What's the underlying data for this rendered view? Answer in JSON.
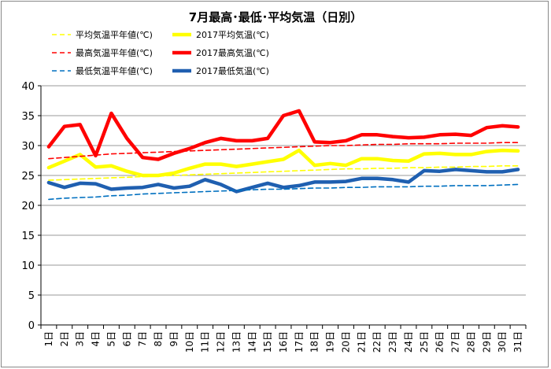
{
  "chart_data": {
    "type": "line",
    "title": "7月最高･最低･平均気温（日別）",
    "xlabel": "",
    "ylabel": "",
    "ylim": [
      0,
      40
    ],
    "yticks": [
      0,
      5,
      10,
      15,
      20,
      25,
      30,
      35,
      40
    ],
    "grid": true,
    "legend_position": "top",
    "categories": [
      "1日",
      "2日",
      "3日",
      "4日",
      "5日",
      "6日",
      "7日",
      "8日",
      "9日",
      "10日",
      "11日",
      "12日",
      "13日",
      "14日",
      "15日",
      "16日",
      "17日",
      "18日",
      "19日",
      "20日",
      "21日",
      "22日",
      "23日",
      "24日",
      "25日",
      "26日",
      "27日",
      "28日",
      "29日",
      "30日",
      "31日"
    ],
    "series": [
      {
        "name": "平均気温平年値(℃)",
        "color": "#ffff00",
        "style": "dashed",
        "values": [
          24.2,
          24.3,
          24.4,
          24.5,
          24.6,
          24.7,
          24.8,
          24.9,
          25.0,
          25.1,
          25.2,
          25.3,
          25.4,
          25.5,
          25.6,
          25.7,
          25.8,
          25.9,
          26.0,
          26.1,
          26.1,
          26.2,
          26.2,
          26.3,
          26.3,
          26.4,
          26.4,
          26.5,
          26.5,
          26.6,
          26.6
        ]
      },
      {
        "name": "2017平均気温(℃)",
        "color": "#ffff00",
        "style": "solid",
        "values": [
          26.3,
          27.4,
          28.5,
          26.4,
          26.6,
          25.7,
          25.0,
          25.0,
          25.4,
          26.2,
          26.9,
          26.9,
          26.5,
          26.9,
          27.3,
          27.7,
          29.2,
          26.7,
          27.0,
          26.7,
          27.8,
          27.8,
          27.5,
          27.4,
          28.6,
          28.7,
          28.5,
          28.5,
          29.0,
          29.2,
          29.1
        ]
      },
      {
        "name": "最高気温平年値(℃)",
        "color": "#ff0000",
        "style": "dashed",
        "values": [
          27.8,
          28.0,
          28.2,
          28.4,
          28.6,
          28.7,
          28.8,
          28.9,
          29.0,
          29.1,
          29.2,
          29.3,
          29.4,
          29.5,
          29.6,
          29.7,
          29.8,
          29.9,
          30.0,
          30.0,
          30.1,
          30.2,
          30.2,
          30.3,
          30.3,
          30.3,
          30.4,
          30.4,
          30.4,
          30.5,
          30.5
        ]
      },
      {
        "name": "2017最高気温(℃)",
        "color": "#ff0000",
        "style": "solid",
        "values": [
          29.8,
          33.2,
          33.5,
          28.3,
          35.4,
          31.2,
          28.0,
          27.7,
          28.7,
          29.5,
          30.5,
          31.2,
          30.8,
          30.8,
          31.2,
          35.0,
          35.8,
          30.6,
          30.5,
          30.8,
          31.8,
          31.8,
          31.5,
          31.3,
          31.4,
          31.8,
          31.9,
          31.7,
          33.0,
          33.3,
          33.1
        ]
      },
      {
        "name": "最低気温平年値(℃)",
        "color": "#0070c0",
        "style": "dashed",
        "values": [
          21.0,
          21.2,
          21.3,
          21.4,
          21.6,
          21.7,
          21.9,
          22.0,
          22.1,
          22.2,
          22.3,
          22.4,
          22.5,
          22.6,
          22.7,
          22.7,
          22.8,
          22.9,
          22.9,
          23.0,
          23.0,
          23.1,
          23.1,
          23.1,
          23.2,
          23.2,
          23.3,
          23.3,
          23.3,
          23.4,
          23.5
        ]
      },
      {
        "name": "2017最低気温(℃)",
        "color": "#1f5fb0",
        "style": "solid",
        "values": [
          23.8,
          23.0,
          23.7,
          23.6,
          22.7,
          22.9,
          23.0,
          23.5,
          22.9,
          23.2,
          24.3,
          23.5,
          22.3,
          23.0,
          23.7,
          23.0,
          23.3,
          23.9,
          23.9,
          24.0,
          24.5,
          24.5,
          24.3,
          23.9,
          25.8,
          25.7,
          26.0,
          25.8,
          25.6,
          25.6,
          26.0
        ]
      }
    ]
  }
}
